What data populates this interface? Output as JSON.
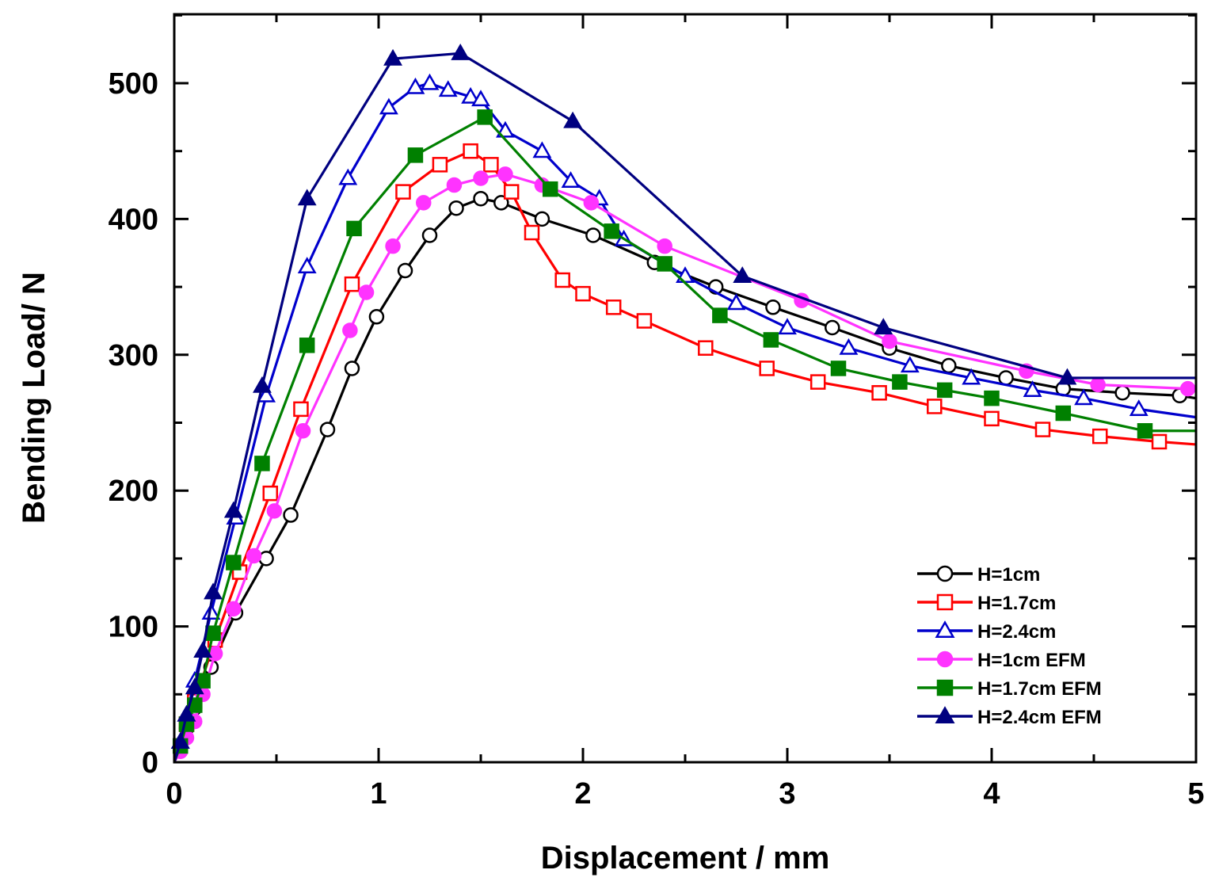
{
  "chart_data": {
    "type": "line",
    "title": "",
    "xlabel": "Displacement / mm",
    "ylabel": "Bending Load/ N",
    "xlim": [
      0,
      5
    ],
    "ylim": [
      0,
      550
    ],
    "xticks": [
      0,
      1,
      2,
      3,
      4,
      5
    ],
    "yticks": [
      0,
      100,
      200,
      300,
      400,
      500
    ],
    "xtick_labels": [
      "0",
      "1",
      "2",
      "3",
      "4",
      "5"
    ],
    "ytick_labels": [
      "0",
      "100",
      "200",
      "300",
      "400",
      "500"
    ],
    "grid": false,
    "legend_position": "bottom-right",
    "series": [
      {
        "name": "H=1cm",
        "color": "#000000",
        "marker": "circle-open",
        "x": [
          0,
          0.03,
          0.06,
          0.1,
          0.18,
          0.3,
          0.45,
          0.57,
          0.75,
          0.87,
          0.99,
          1.13,
          1.25,
          1.38,
          1.5,
          1.6,
          1.8,
          2.05,
          2.35,
          2.65,
          2.93,
          3.22,
          3.5,
          3.79,
          4.07,
          4.35,
          4.64,
          4.92,
          5.0
        ],
        "y": [
          0,
          10,
          25,
          40,
          70,
          110,
          150,
          182,
          245,
          290,
          328,
          362,
          388,
          408,
          415,
          412,
          400,
          388,
          368,
          350,
          335,
          320,
          305,
          292,
          283,
          275,
          272,
          270,
          268
        ]
      },
      {
        "name": "H=1.7cm",
        "color": "#ff0000",
        "marker": "square-open",
        "x": [
          0,
          0.03,
          0.06,
          0.1,
          0.2,
          0.32,
          0.47,
          0.62,
          0.87,
          1.12,
          1.3,
          1.45,
          1.55,
          1.65,
          1.75,
          1.9,
          2.0,
          2.15,
          2.3,
          2.6,
          2.9,
          3.15,
          3.45,
          3.72,
          4.0,
          4.25,
          4.53,
          4.82,
          5.0
        ],
        "y": [
          0,
          12,
          28,
          45,
          90,
          140,
          198,
          260,
          352,
          420,
          440,
          450,
          440,
          420,
          390,
          355,
          345,
          335,
          325,
          305,
          290,
          280,
          272,
          262,
          253,
          245,
          240,
          236,
          234
        ]
      },
      {
        "name": "H=2.4cm",
        "color": "#0000cc",
        "marker": "triangle-open",
        "x": [
          0,
          0.03,
          0.06,
          0.1,
          0.18,
          0.3,
          0.45,
          0.65,
          0.85,
          1.05,
          1.18,
          1.25,
          1.34,
          1.45,
          1.5,
          1.62,
          1.8,
          1.94,
          2.08,
          2.2,
          2.5,
          2.75,
          3.0,
          3.3,
          3.6,
          3.9,
          4.2,
          4.45,
          4.72,
          5.0
        ],
        "y": [
          0,
          15,
          35,
          60,
          110,
          180,
          270,
          365,
          430,
          482,
          497,
          500,
          495,
          490,
          488,
          465,
          450,
          428,
          415,
          385,
          358,
          338,
          320,
          305,
          292,
          283,
          274,
          268,
          260,
          254
        ]
      },
      {
        "name": "H=1cm EFM",
        "color": "#ff33ff",
        "marker": "circle-filled",
        "x": [
          0,
          0.03,
          0.06,
          0.1,
          0.14,
          0.2,
          0.29,
          0.39,
          0.49,
          0.63,
          0.86,
          0.94,
          1.07,
          1.22,
          1.37,
          1.5,
          1.62,
          1.8,
          2.04,
          2.4,
          3.07,
          3.5,
          4.17,
          4.52,
          4.96,
          5.0
        ],
        "y": [
          0,
          8,
          18,
          30,
          50,
          80,
          113,
          152,
          185,
          244,
          318,
          346,
          380,
          412,
          425,
          430,
          433,
          425,
          412,
          380,
          340,
          310,
          288,
          278,
          275,
          275
        ]
      },
      {
        "name": "H=1.7cm EFM",
        "color": "#008000",
        "marker": "square-filled",
        "x": [
          0,
          0.03,
          0.06,
          0.1,
          0.14,
          0.19,
          0.29,
          0.43,
          0.65,
          0.88,
          1.18,
          1.52,
          1.84,
          2.14,
          2.4,
          2.67,
          2.92,
          3.25,
          3.55,
          3.77,
          4.0,
          4.35,
          4.75,
          5.0
        ],
        "y": [
          0,
          12,
          28,
          42,
          60,
          95,
          147,
          220,
          307,
          393,
          447,
          475,
          422,
          391,
          367,
          329,
          311,
          290,
          280,
          274,
          268,
          257,
          244,
          244
        ]
      },
      {
        "name": "H=2.4cm EFM",
        "color": "#000080",
        "marker": "triangle-filled",
        "x": [
          0,
          0.03,
          0.06,
          0.1,
          0.14,
          0.19,
          0.29,
          0.43,
          0.65,
          1.07,
          1.4,
          1.95,
          2.78,
          3.47,
          4.37,
          5.0
        ],
        "y": [
          0,
          15,
          35,
          55,
          82,
          125,
          185,
          277,
          415,
          518,
          522,
          472,
          358,
          320,
          283,
          283
        ]
      }
    ]
  }
}
